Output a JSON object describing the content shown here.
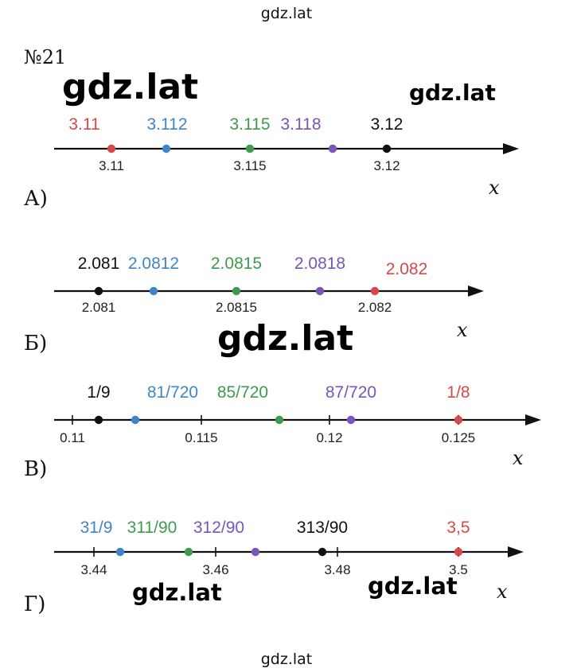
{
  "header": "gdz.lat",
  "footer": "gdz.lat",
  "problem_number": "№21",
  "watermarks": [
    "gdz.lat",
    "gdz.lat",
    "gdz.lat",
    "gdz.lat",
    "gdz.lat"
  ],
  "colors": {
    "red": "#d9474a",
    "blue": "#3f86c6",
    "green": "#3e9a4e",
    "purple": "#7a54b8",
    "black": "#111111"
  },
  "chart_data": [
    {
      "type": "number-line",
      "part_label": "А)",
      "axis_label": "x",
      "ticks": [
        "3.11",
        "3.115",
        "3.12"
      ],
      "points": [
        {
          "label": "3.11",
          "value": 3.11,
          "color": "red"
        },
        {
          "label": "3.112",
          "value": 3.112,
          "color": "blue"
        },
        {
          "label": "3.115",
          "value": 3.115,
          "color": "green"
        },
        {
          "label": "3.118",
          "value": 3.118,
          "color": "purple"
        },
        {
          "label": "3.12",
          "value": 3.12,
          "color": "black"
        }
      ]
    },
    {
      "type": "number-line",
      "part_label": "Б)",
      "axis_label": "x",
      "ticks": [
        "2.081",
        "2.0815",
        "2.082"
      ],
      "points": [
        {
          "label": "2.081",
          "value": 2.081,
          "color": "black"
        },
        {
          "label": "2.0812",
          "value": 2.0812,
          "color": "blue"
        },
        {
          "label": "2.0815",
          "value": 2.0815,
          "color": "green"
        },
        {
          "label": "2.0818",
          "value": 2.0818,
          "color": "purple"
        },
        {
          "label": "2.082",
          "value": 2.082,
          "color": "red"
        }
      ]
    },
    {
      "type": "number-line",
      "part_label": "В)",
      "axis_label": "x",
      "ticks": [
        "0.11",
        "0.115",
        "0.12",
        "0.125"
      ],
      "points": [
        {
          "label": "1/9",
          "value": 0.1111,
          "color": "black"
        },
        {
          "label": "81/720",
          "value": 0.1125,
          "color": "blue"
        },
        {
          "label": "85/720",
          "value": 0.1181,
          "color": "green"
        },
        {
          "label": "87/720",
          "value": 0.1208,
          "color": "purple"
        },
        {
          "label": "1/8",
          "value": 0.125,
          "color": "red"
        }
      ]
    },
    {
      "type": "number-line",
      "part_label": "Г)",
      "axis_label": "x",
      "ticks": [
        "3.44",
        "3.46",
        "3.48",
        "3.5"
      ],
      "points": [
        {
          "label": "31/9",
          "value": 3.444,
          "color": "blue"
        },
        {
          "label": "311/90",
          "value": 3.456,
          "color": "green"
        },
        {
          "label": "312/90",
          "value": 3.467,
          "color": "purple"
        },
        {
          "label": "313/90",
          "value": 3.478,
          "color": "black"
        },
        {
          "label": "3,5",
          "value": 3.5,
          "color": "red"
        }
      ]
    }
  ]
}
